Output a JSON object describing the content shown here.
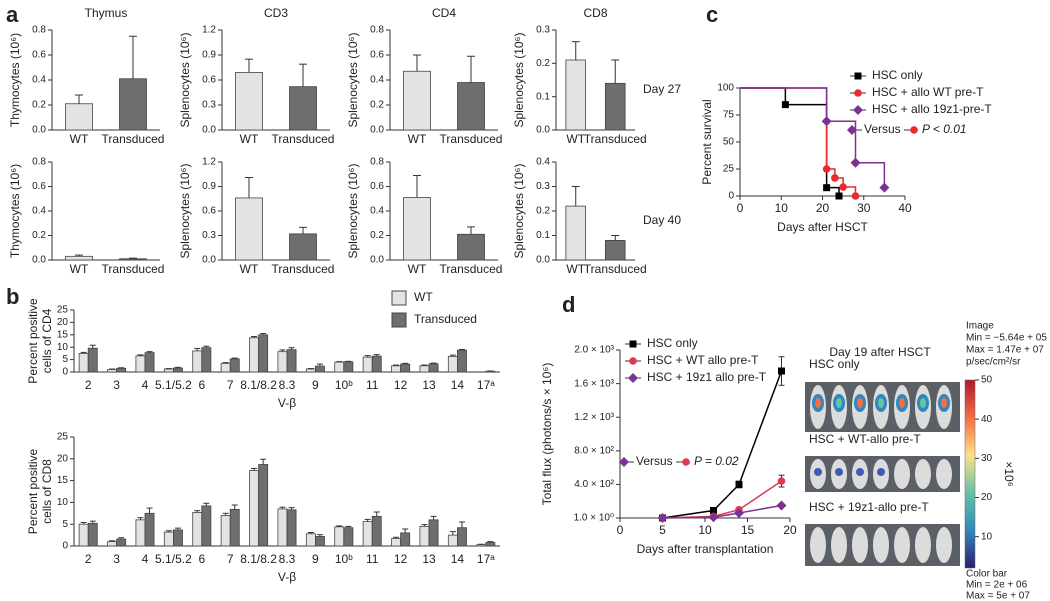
{
  "panel_labels": [
    "a",
    "b",
    "c",
    "d"
  ],
  "chart_data": [
    {
      "type": "bar",
      "title": "Thymus",
      "ylabel": "Thymocytes (10⁶)",
      "categories": [
        "WT",
        "Transduced"
      ],
      "values": [
        0.21,
        0.41
      ],
      "errors": [
        0.07,
        0.34
      ],
      "colors": [
        "#e3e3e3",
        "#6e6e6e"
      ],
      "ylim": [
        0,
        0.8
      ],
      "yticks": [
        {
          "value": 0,
          "label": "0.0"
        },
        0.2,
        0.4,
        0.6,
        0.8
      ]
    },
    {
      "type": "bar",
      "title": "CD3",
      "ylabel": "Splenocytes (10⁶)",
      "categories": [
        "WT",
        "Transduced"
      ],
      "values": [
        0.69,
        0.52
      ],
      "errors": [
        0.16,
        0.27
      ],
      "colors": [
        "#e3e3e3",
        "#6e6e6e"
      ],
      "ylim": [
        0,
        1.2
      ],
      "yticks": [
        {
          "value": 0,
          "label": "0.0"
        },
        0.3,
        0.6,
        0.9,
        1.2
      ]
    },
    {
      "type": "bar",
      "title": "CD4",
      "ylabel": "Splenocytes (10⁶)",
      "categories": [
        "WT",
        "Transduced"
      ],
      "values": [
        0.47,
        0.38
      ],
      "errors": [
        0.13,
        0.21
      ],
      "colors": [
        "#e3e3e3",
        "#6e6e6e"
      ],
      "ylim": [
        0,
        0.8
      ],
      "yticks": [
        {
          "value": 0,
          "label": "0.0"
        },
        0.2,
        0.4,
        0.6,
        0.8
      ]
    },
    {
      "type": "bar",
      "title": "CD8",
      "ylabel": "Splenocytes (10⁶)",
      "categories": [
        "WT",
        "Transduced"
      ],
      "values": [
        0.21,
        0.14
      ],
      "errors": [
        0.055,
        0.07
      ],
      "colors": [
        "#e3e3e3",
        "#6e6e6e"
      ],
      "ylim": [
        0,
        0.3
      ],
      "yticks": [
        {
          "value": 0,
          "label": "0.0"
        },
        0.1,
        0.2,
        0.3
      ],
      "annotation": "Day 27"
    },
    {
      "type": "bar",
      "ylabel": "Thymocytes (10⁶)",
      "categories": [
        "WT",
        "Transduced"
      ],
      "values": [
        0.03,
        0.01
      ],
      "errors": [
        0.01,
        0.005
      ],
      "colors": [
        "#e3e3e3",
        "#6e6e6e"
      ],
      "ylim": [
        0,
        0.8
      ],
      "yticks": [
        {
          "value": 0,
          "label": "0.0"
        },
        0.2,
        0.4,
        0.6,
        0.8
      ]
    },
    {
      "type": "bar",
      "ylabel": "Splenocytes (10⁶)",
      "categories": [
        "WT",
        "Transduced"
      ],
      "values": [
        0.76,
        0.32
      ],
      "errors": [
        0.25,
        0.08
      ],
      "colors": [
        "#e3e3e3",
        "#6e6e6e"
      ],
      "ylim": [
        0,
        1.2
      ],
      "yticks": [
        {
          "value": 0,
          "label": "0.0"
        },
        0.3,
        0.6,
        0.9,
        1.2
      ]
    },
    {
      "type": "bar",
      "ylabel": "Splenocytes (10⁶)",
      "categories": [
        "WT",
        "Transduced"
      ],
      "values": [
        0.51,
        0.21
      ],
      "errors": [
        0.18,
        0.06
      ],
      "colors": [
        "#e3e3e3",
        "#6e6e6e"
      ],
      "ylim": [
        0,
        0.8
      ],
      "yticks": [
        {
          "value": 0,
          "label": "0.0"
        },
        0.2,
        0.4,
        0.6,
        0.8
      ]
    },
    {
      "type": "bar",
      "ylabel": "Splenocytes (10⁶)",
      "categories": [
        "WT",
        "Transduced"
      ],
      "values": [
        0.22,
        0.08
      ],
      "errors": [
        0.08,
        0.02
      ],
      "colors": [
        "#e3e3e3",
        "#6e6e6e"
      ],
      "ylim": [
        0,
        0.4
      ],
      "yticks": [
        {
          "value": 0,
          "label": "0.0"
        },
        0.1,
        0.2,
        0.3,
        0.4
      ],
      "annotation": "Day 40"
    },
    {
      "type": "grouped-bar",
      "ylabel": [
        "Percent positive",
        "cells of CD4"
      ],
      "xlabel": "V-β",
      "categories": [
        "2",
        "3",
        "4",
        "5.1/5.2",
        "6",
        "7",
        "8.1/8.2",
        "8.3",
        "9",
        "10ᵇ",
        "11",
        "12",
        "13",
        "14",
        "17ᵃ"
      ],
      "series": [
        {
          "name": "WT",
          "color": "#e3e3e3",
          "values": [
            7.5,
            1,
            6.5,
            1.2,
            8.5,
            3.5,
            13.8,
            8.2,
            1.2,
            4,
            6,
            2.5,
            2.5,
            6.3,
            0
          ],
          "errors": [
            0.4,
            0.2,
            0.4,
            0.2,
            1,
            0.3,
            0.5,
            0.7,
            0.2,
            0.2,
            0.6,
            0.3,
            0.3,
            0.5,
            0
          ]
        },
        {
          "name": "Transduced",
          "color": "#6e6e6e",
          "values": [
            9.6,
            1.5,
            7.8,
            1.6,
            9.8,
            5.3,
            15,
            9,
            2.4,
            4.1,
            6.4,
            3.2,
            3.3,
            8.8,
            0.3
          ],
          "errors": [
            1.2,
            0.2,
            0.4,
            0.3,
            0.6,
            0.3,
            0.5,
            0.8,
            0.8,
            0.2,
            0.6,
            0.3,
            0.3,
            0.3,
            0.1
          ]
        }
      ],
      "ylim": [
        0,
        25
      ],
      "yticks": [
        0,
        5,
        10,
        15,
        20,
        25
      ]
    },
    {
      "type": "grouped-bar",
      "ylabel": [
        "Percent positive",
        "cells of CD8"
      ],
      "xlabel": "V-β",
      "categories": [
        "2",
        "3",
        "4",
        "5.1/5.2",
        "6",
        "7",
        "8.1/8.2",
        "8.3",
        "9",
        "10ᵇ",
        "11",
        "12",
        "13",
        "14",
        "17ᵃ"
      ],
      "series": [
        {
          "color": "#e3e3e3",
          "values": [
            5,
            1,
            6,
            3.2,
            7.7,
            7,
            17.3,
            8.5,
            2.8,
            4.4,
            5.6,
            1.7,
            4.5,
            2.5,
            0.3
          ],
          "errors": [
            0.4,
            0.2,
            0.5,
            0.3,
            0.4,
            0.5,
            0.5,
            0.4,
            0.3,
            0.2,
            0.5,
            0.3,
            0.4,
            0.8,
            0.1
          ]
        },
        {
          "color": "#6e6e6e",
          "values": [
            5.2,
            1.6,
            7.5,
            3.7,
            9.2,
            8.4,
            18.7,
            8.3,
            2.2,
            4.2,
            6.8,
            3,
            6,
            4.2,
            0.8
          ],
          "errors": [
            0.5,
            0.3,
            1.2,
            0.4,
            0.6,
            1,
            1.2,
            0.5,
            0.4,
            0.3,
            1,
            0.9,
            0.8,
            1.3,
            0.2
          ]
        }
      ],
      "ylim": [
        0,
        25
      ],
      "yticks": [
        0,
        5,
        10,
        15,
        20,
        25
      ]
    },
    {
      "type": "line",
      "step": true,
      "xlabel": "Days after HSCT",
      "ylabel": "Percent survival",
      "xlim": [
        0,
        40
      ],
      "xticks": [
        0,
        10,
        20,
        30,
        40
      ],
      "ylim": [
        0,
        100
      ],
      "yticks": [
        0,
        25,
        50,
        75,
        100
      ],
      "series": [
        {
          "name": "HSC only",
          "color": "#000000",
          "marker": "square",
          "x": [
            0,
            11,
            21,
            24
          ],
          "values": [
            100,
            84.6,
            7.7,
            0
          ]
        },
        {
          "name": "HSC + allo WT pre-T",
          "color": "#e8292d",
          "marker": "circle",
          "x": [
            0,
            21,
            23,
            25,
            28
          ],
          "values": [
            100,
            25,
            16.7,
            8.3,
            0
          ]
        },
        {
          "name": "HSC + allo 19z1-pre-T",
          "color": "#7b3294",
          "marker": "diamond",
          "x": [
            0,
            21,
            28,
            35
          ],
          "values": [
            100,
            69.2,
            30.8,
            7.7
          ]
        }
      ],
      "annotations": [
        "Versus",
        "P < 0.01"
      ]
    },
    {
      "type": "line",
      "xlabel": "Days after transplantation",
      "ylabel": "Total flux (photons/s × 10⁶)",
      "xlim": [
        0,
        20
      ],
      "xticks": [
        0,
        5,
        10,
        15,
        20
      ],
      "ylim": [
        1,
        2000
      ],
      "yticks": [
        {
          "value": 1,
          "label": "1.0 × 10⁰"
        },
        {
          "value": 400,
          "label": "4.0 × 10²"
        },
        {
          "value": 800,
          "label": "8.0 × 10²"
        },
        {
          "value": 1200,
          "label": "1.2 × 10³"
        },
        {
          "value": 1600,
          "label": "1.6 × 10³"
        },
        {
          "value": 2000,
          "label": "2.0 × 10³"
        }
      ],
      "series": [
        {
          "name": "HSC only",
          "color": "#000000",
          "marker": "square",
          "x": [
            5,
            11,
            14,
            19
          ],
          "values": [
            1,
            90,
            400,
            1750
          ],
          "errors": [
            0,
            20,
            40,
            170
          ]
        },
        {
          "name": "HSC + WT allo pre-T",
          "color": "#e03a52",
          "marker": "circle",
          "x": [
            5,
            11,
            14,
            19
          ],
          "values": [
            1,
            20,
            100,
            440
          ],
          "errors": [
            0,
            5,
            15,
            70
          ]
        },
        {
          "name": "HSC + 19z1 allo pre-T",
          "color": "#7b3294",
          "marker": "diamond",
          "x": [
            5,
            11,
            14,
            19
          ],
          "values": [
            1,
            10,
            60,
            150
          ],
          "errors": [
            0,
            3,
            10,
            15
          ]
        }
      ],
      "annotations": [
        "Versus",
        "P = 0.02"
      ]
    },
    {
      "type": "colorbar",
      "title": "Day 19 after HSCT",
      "images": [
        "HSC only",
        "HSC + WT-allo pre-T",
        "HSC + 19z1-allo pre-T"
      ],
      "header": [
        "Image",
        "Min = −5.64e + 05",
        "Max = 1.47e + 07",
        "p/sec/cm²/sr"
      ],
      "unit": "×10⁶",
      "footer": [
        "Color bar",
        "Min = 2e + 06",
        "Max = 5e + 07"
      ],
      "ylim": [
        2,
        50
      ],
      "yticks": [
        10,
        20,
        30,
        40,
        50
      ]
    }
  ]
}
